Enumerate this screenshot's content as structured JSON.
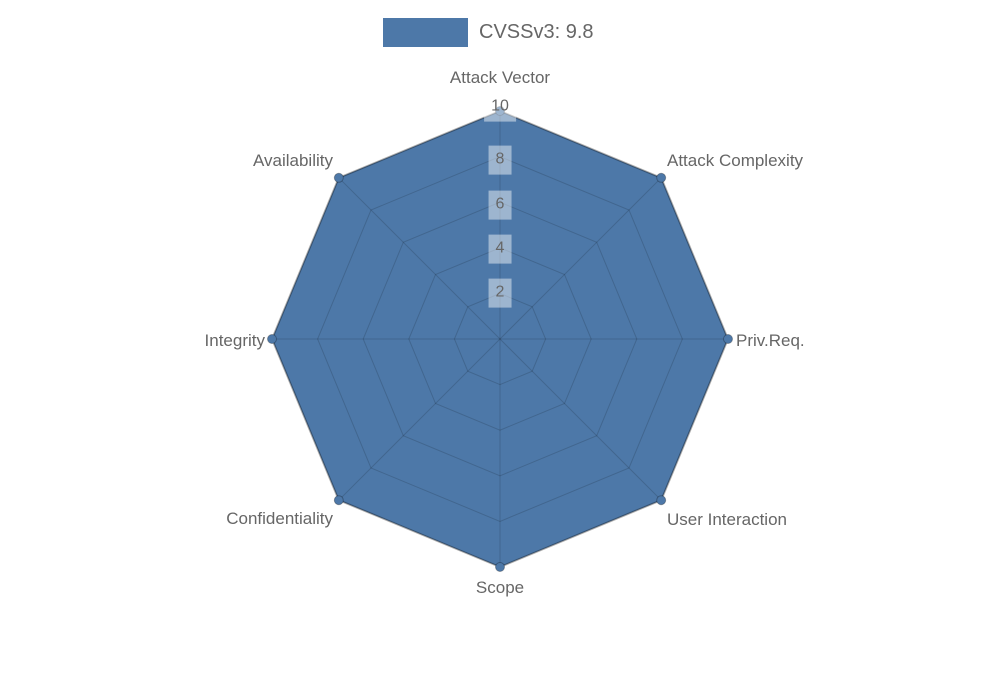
{
  "chart_data": {
    "type": "radar",
    "title": "",
    "legend": {
      "position": "top",
      "label": "CVSSv3: 9.8"
    },
    "categories": [
      "Attack Vector",
      "Attack Complexity",
      "Priv.Req.",
      "User Interaction",
      "Scope",
      "Confidentiality",
      "Integrity",
      "Availability"
    ],
    "series": [
      {
        "name": "CVSSv3: 9.8",
        "values": [
          10,
          10,
          10,
          10,
          10,
          10,
          10,
          10
        ]
      }
    ],
    "scale": {
      "min": 0,
      "max": 10,
      "tick_step": 2,
      "tick_labels": [
        "2",
        "4",
        "6",
        "8",
        "10"
      ]
    },
    "layout_hints": {
      "start_angle_deg": -90,
      "direction": "clockwise",
      "grid": "on",
      "rings": 5
    },
    "colors": {
      "fill": "#4d78a8",
      "series_border": "rgba(0,0,0,0.28)",
      "grid": "rgba(0,0,0,0.15)",
      "label": "#666666",
      "tick_backdrop": "rgba(255,255,255,0.45)"
    }
  }
}
